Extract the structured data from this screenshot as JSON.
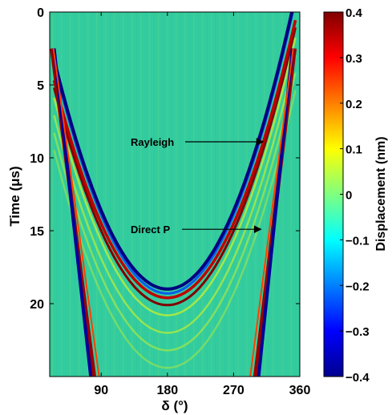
{
  "chart_data": {
    "type": "heatmap",
    "title": "",
    "xlabel": "δ (°)",
    "ylabel": "Time (μs)",
    "xlim": [
      20,
      360
    ],
    "ylim": [
      25,
      0
    ],
    "y_reversed": true,
    "xticks": [
      90,
      180,
      270,
      360
    ],
    "yticks": [
      0,
      5,
      10,
      15,
      20
    ],
    "colorbar": {
      "label": "Displacement (nm)",
      "range": [
        -0.4,
        0.4
      ],
      "ticks": [
        -0.4,
        -0.3,
        -0.2,
        -0.1,
        0,
        0.1,
        0.2,
        0.3,
        0.4
      ],
      "tick_labels": [
        "−0.4",
        "−0.3",
        "−0.2",
        "−0.1",
        "0",
        "0.1",
        "0.2",
        "0.3",
        "0.4"
      ],
      "colormap": "jet"
    },
    "arrivals": [
      {
        "name": "Direct P",
        "min_delta": 180,
        "min_time": 19.0,
        "edge_time": 2.0,
        "amplitude": -0.4
      },
      {
        "name": "Rayleigh",
        "min_delta": 180,
        "min_time": 19.6,
        "edge_time": 3.5,
        "amplitude": 0.35
      }
    ],
    "annotations": [
      {
        "text": "Rayleigh",
        "x": 310,
        "y": 8.9
      },
      {
        "text": "Direct P",
        "x": 307,
        "y": 14.9
      }
    ]
  }
}
